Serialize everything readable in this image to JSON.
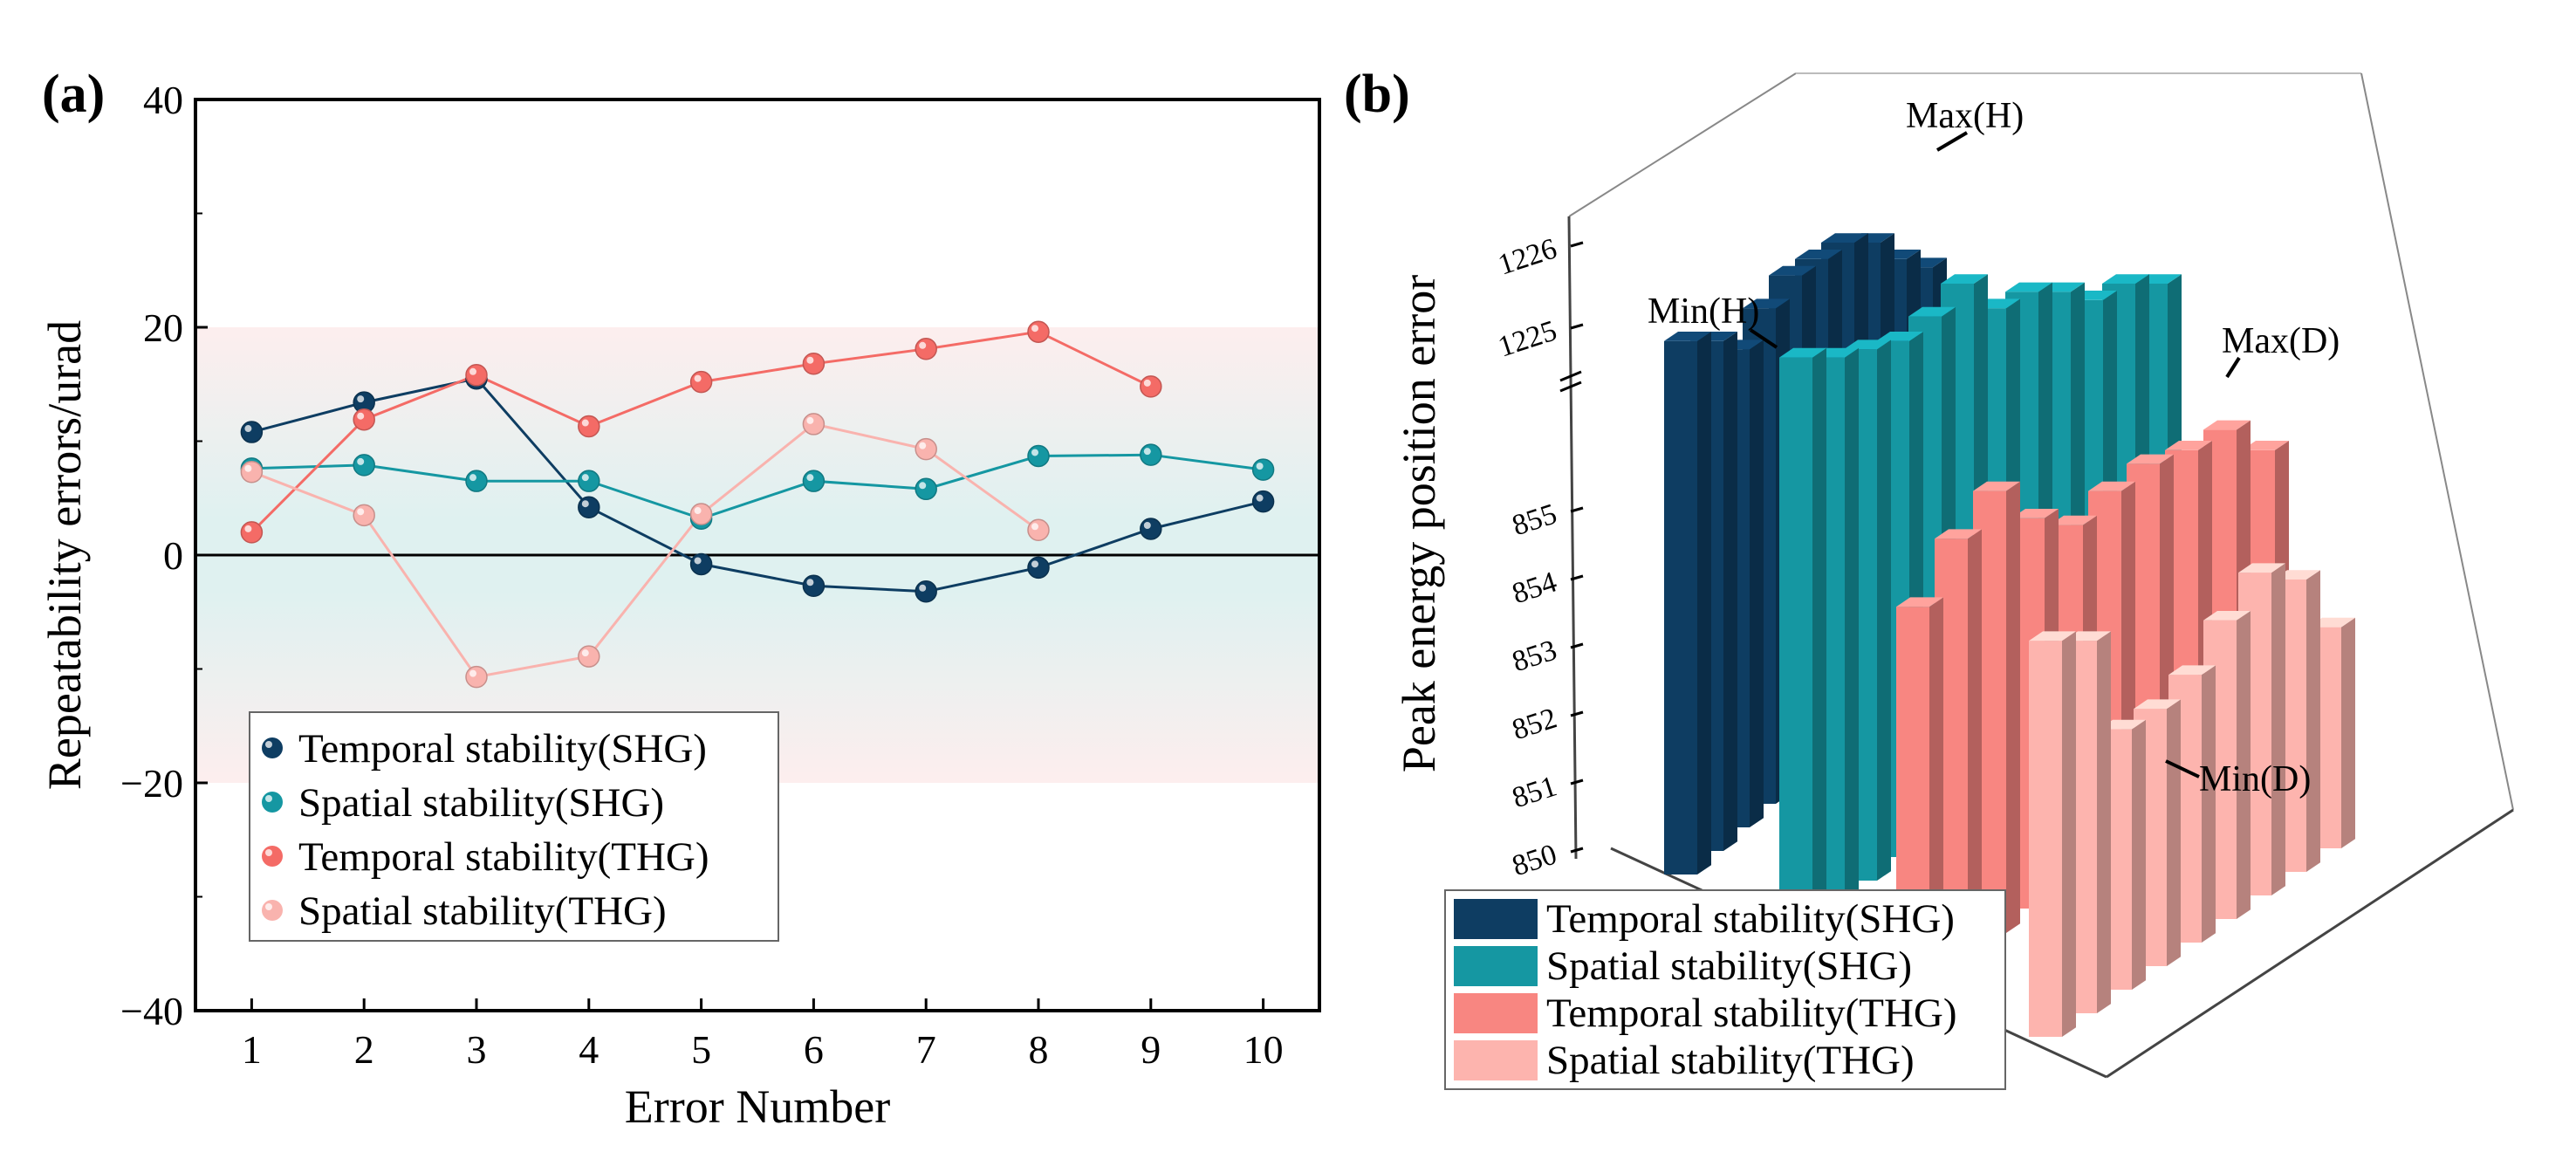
{
  "chart_data": [
    {
      "panel": "(a)",
      "type": "line",
      "xlabel": "Error Number",
      "ylabel": "Repeatability errors/urad",
      "xlim": [
        0.5,
        10.5
      ],
      "ylim": [
        -40,
        40
      ],
      "xticks": [
        "1",
        "2",
        "3",
        "4",
        "5",
        "6",
        "7",
        "8",
        "9",
        "10"
      ],
      "yticks": [
        "−40",
        "−20",
        "0",
        "20",
        "40"
      ],
      "band_limits": [
        -20,
        20
      ],
      "legend_position": "bottom-left",
      "series": [
        {
          "name": "Temporal stability(SHG)",
          "color": "#0e3d62",
          "x": [
            1,
            2,
            3,
            4,
            5,
            6,
            7,
            8,
            9,
            10
          ],
          "values": [
            10.8,
            13.4,
            15.5,
            4.2,
            -0.8,
            -2.7,
            -3.2,
            -1.1,
            2.3,
            4.7
          ]
        },
        {
          "name": "Spatial stability(SHG)",
          "color": "#1597a2",
          "x": [
            1,
            2,
            3,
            4,
            5,
            6,
            7,
            8,
            9,
            10
          ],
          "values": [
            7.6,
            7.9,
            6.5,
            6.5,
            3.2,
            6.5,
            5.8,
            8.7,
            8.8,
            7.5
          ]
        },
        {
          "name": "Temporal stability(THG)",
          "color": "#f46b66",
          "x": [
            1,
            2,
            3,
            4,
            5,
            6,
            7,
            8,
            9
          ],
          "values": [
            2.0,
            11.9,
            15.8,
            11.3,
            15.2,
            16.8,
            18.1,
            19.6,
            14.8
          ]
        },
        {
          "name": "Spatial stability(THG)",
          "color": "#f9b3ae",
          "x": [
            1,
            2,
            3,
            4,
            5,
            6,
            7,
            8
          ],
          "values": [
            7.3,
            3.5,
            -10.7,
            -8.9,
            3.6,
            11.5,
            9.3,
            2.2
          ]
        }
      ]
    },
    {
      "panel": "(b)",
      "type": "bar3d",
      "zlabel": "Peak energy position error",
      "z_ticks_lower": [
        "850",
        "851",
        "852",
        "853",
        "854",
        "855"
      ],
      "z_ticks_upper": [
        "1225",
        "1226"
      ],
      "axis_break": true,
      "legend_position": "bottom-left",
      "annotations": [
        "Max(H)",
        "Min(H)",
        "Max(D)",
        "Min(D)"
      ],
      "series": [
        {
          "name": "Temporal stability(SHG)",
          "color": "#0e3d62",
          "values": [
            1224.8,
            1224.8,
            1224.7,
            1225.2,
            1225.6,
            1225.8,
            1226.0,
            1226.0,
            1225.8,
            1225.7
          ]
        },
        {
          "name": "Spatial stability(SHG)",
          "color": "#1597a2",
          "values": [
            1224.6,
            1224.6,
            1224.7,
            1224.8,
            1225.1,
            1225.5,
            1225.2,
            1225.4,
            1225.4,
            1225.3,
            1225.5,
            1225.5
          ]
        },
        {
          "name": "Temporal stability(THG)",
          "color": "#f88681",
          "values": [
            853.6,
            854.6,
            855.3,
            854.9,
            854.8,
            855.3,
            855.7,
            855.9,
            856.2,
            855.9
          ]
        },
        {
          "name": "Spatial stability(THG)",
          "color": "#fdb4ae",
          "values": [
            853.1,
            853.1,
            851.8,
            852.1,
            852.6,
            853.4,
            854.1,
            854.0,
            853.3
          ]
        }
      ]
    }
  ]
}
